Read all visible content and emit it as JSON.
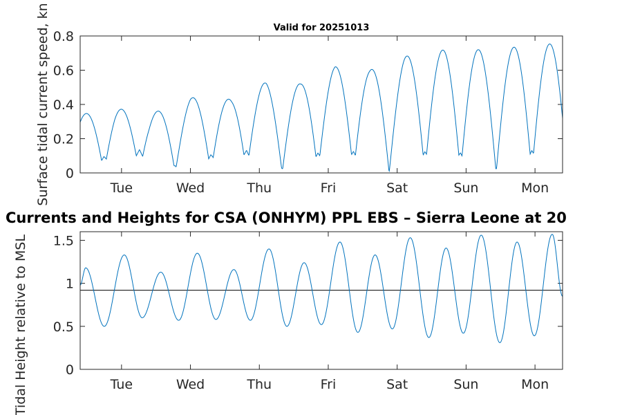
{
  "chart_data": [
    {
      "type": "line",
      "title": "Valid for 20251013",
      "ylabel": "Surface tidal current speed, kn",
      "xlabel": "",
      "ylim": [
        0,
        0.8
      ],
      "yticks": [
        0,
        0.2,
        0.4,
        0.6,
        0.8
      ],
      "ytick_labels": [
        "0",
        "0.2",
        "0.4",
        "0.6",
        "0.8"
      ],
      "xlim": [
        0,
        7
      ],
      "xticks": [
        0.6,
        1.6,
        2.6,
        3.6,
        4.6,
        5.6,
        6.6
      ],
      "xtick_labels": [
        "Tue",
        "Wed",
        "Thu",
        "Fri",
        "Sat",
        "Sun",
        "Mon"
      ],
      "series": [
        {
          "name": "current speed",
          "color": "#0072bd",
          "semidiurnal_peak_envelope": [
            {
              "x": 0.0,
              "amplitude": 0.34
            },
            {
              "x": 0.5,
              "amplitude": 0.38
            },
            {
              "x": 1.0,
              "amplitude": 0.34
            },
            {
              "x": 1.6,
              "amplitude": 0.44
            },
            {
              "x": 2.2,
              "amplitude": 0.43
            },
            {
              "x": 2.7,
              "amplitude": 0.53
            },
            {
              "x": 3.2,
              "amplitude": 0.52
            },
            {
              "x": 3.7,
              "amplitude": 0.62
            },
            {
              "x": 4.2,
              "amplitude": 0.6
            },
            {
              "x": 4.7,
              "amplitude": 0.68
            },
            {
              "x": 5.3,
              "amplitude": 0.72
            },
            {
              "x": 5.9,
              "amplitude": 0.72
            },
            {
              "x": 7.0,
              "amplitude": 0.76
            }
          ],
          "min_speed_range": [
            0.01,
            0.14
          ]
        }
      ]
    },
    {
      "type": "line",
      "title": "Currents and Heights for CSA (ONHYM) PPL EBS  – Sierra Leone at 20",
      "ylabel": "Tidal Height relative to MSL",
      "xlabel": "",
      "ylim": [
        0,
        1.6
      ],
      "yticks": [
        0,
        0.5,
        1,
        1.5
      ],
      "ytick_labels": [
        "0",
        "0.5",
        "1",
        "1.5"
      ],
      "xlim": [
        0,
        7
      ],
      "xticks": [
        0.6,
        1.6,
        2.6,
        3.6,
        4.6,
        5.6,
        6.6
      ],
      "xtick_labels": [
        "Tue",
        "Wed",
        "Thu",
        "Fri",
        "Sat",
        "Sun",
        "Mon"
      ],
      "reference_line": {
        "y": 0.92,
        "color": "#000000"
      },
      "series": [
        {
          "name": "tidal height",
          "color": "#0072bd",
          "high_waters": [
            {
              "x": 0.08,
              "y": 1.18
            },
            {
              "x": 0.64,
              "y": 1.33
            },
            {
              "x": 1.17,
              "y": 1.13
            },
            {
              "x": 1.7,
              "y": 1.35
            },
            {
              "x": 2.23,
              "y": 1.16
            },
            {
              "x": 2.74,
              "y": 1.4
            },
            {
              "x": 3.25,
              "y": 1.24
            },
            {
              "x": 3.77,
              "y": 1.48
            },
            {
              "x": 4.28,
              "y": 1.33
            },
            {
              "x": 4.79,
              "y": 1.53
            },
            {
              "x": 5.31,
              "y": 1.41
            },
            {
              "x": 5.82,
              "y": 1.56
            },
            {
              "x": 6.34,
              "y": 1.48
            },
            {
              "x": 6.85,
              "y": 1.57
            }
          ],
          "low_waters": [
            {
              "x": 0.35,
              "y": 0.5
            },
            {
              "x": 0.9,
              "y": 0.6
            },
            {
              "x": 1.43,
              "y": 0.57
            },
            {
              "x": 1.97,
              "y": 0.58
            },
            {
              "x": 2.47,
              "y": 0.57
            },
            {
              "x": 3.0,
              "y": 0.5
            },
            {
              "x": 3.5,
              "y": 0.52
            },
            {
              "x": 4.03,
              "y": 0.43
            },
            {
              "x": 4.53,
              "y": 0.47
            },
            {
              "x": 5.06,
              "y": 0.37
            },
            {
              "x": 5.56,
              "y": 0.42
            },
            {
              "x": 6.09,
              "y": 0.31
            },
            {
              "x": 6.59,
              "y": 0.39
            }
          ],
          "start": {
            "x": 0.0,
            "y": 0.98
          },
          "end": {
            "x": 7.0,
            "y": 0.85
          }
        }
      ]
    }
  ]
}
